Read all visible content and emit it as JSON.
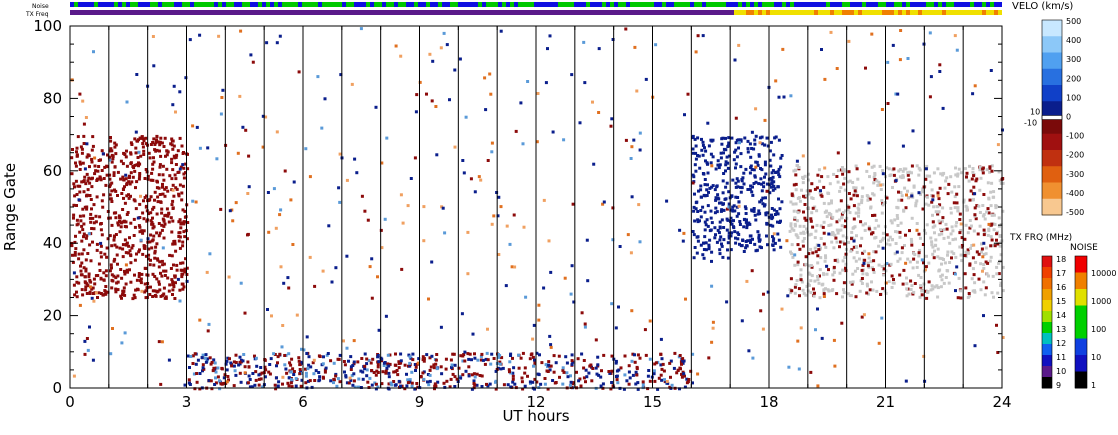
{
  "header": {
    "noise_label": "Noise",
    "txfreq_label": "TX Freq"
  },
  "chart_data": {
    "type": "heatmap",
    "xlabel": "UT hours",
    "ylabel": "Range Gate",
    "xlim": [
      0,
      24
    ],
    "ylim": [
      0,
      100
    ],
    "xticks": [
      0,
      3,
      6,
      9,
      12,
      15,
      18,
      21,
      24
    ],
    "yticks": [
      0,
      20,
      40,
      60,
      80,
      100
    ],
    "hour_gridlines": [
      1,
      2,
      3,
      4,
      5,
      6,
      7,
      8,
      9,
      10,
      11,
      12,
      13,
      14,
      15,
      16,
      17,
      18,
      19,
      20,
      21,
      22,
      23
    ],
    "tx_freq_change_hour": 17,
    "ground_scatter_color": "#c8c8c8",
    "regions": [
      {
        "name": "positive-velocity-patch",
        "t0": 16.0,
        "t1": 17.0,
        "g0": 35,
        "g1": 70,
        "color": "#0a1e8c"
      },
      {
        "name": "positive-velocity-patch-2",
        "t0": 17.0,
        "t1": 18.3,
        "g0": 38,
        "g1": 70,
        "color": "#0a1e8c"
      },
      {
        "name": "negative-velocity-band",
        "t0": 0.0,
        "t1": 3.0,
        "g0": 25,
        "g1": 70,
        "color": "#8c0a0a"
      },
      {
        "name": "ground-scatter-band",
        "t0": 18.5,
        "t1": 24.0,
        "g0": 25,
        "g1": 62,
        "color": "#c8c8c8"
      },
      {
        "name": "near-range-scatter",
        "t0": 3.0,
        "t1": 16.0,
        "g0": 0,
        "g1": 10,
        "color": "#8c0a0a"
      }
    ],
    "velocity_scale": {
      "title": "VELO (km/s)",
      "ticks": [
        "500",
        "400",
        "300",
        "200",
        "100",
        "0",
        "-100",
        "-200",
        "-300",
        "-400",
        "-500"
      ],
      "inner_labels": [
        "10",
        "-10"
      ]
    },
    "txfreq_scale": {
      "title": "TX FRQ (MHz)",
      "ticks": [
        "18",
        "17",
        "16",
        "15",
        "14",
        "13",
        "12",
        "11",
        "10",
        "9"
      ]
    },
    "noise_scale": {
      "title": "NOISE",
      "ticks": [
        "10000",
        "1000",
        "100",
        "10",
        "1"
      ]
    }
  }
}
